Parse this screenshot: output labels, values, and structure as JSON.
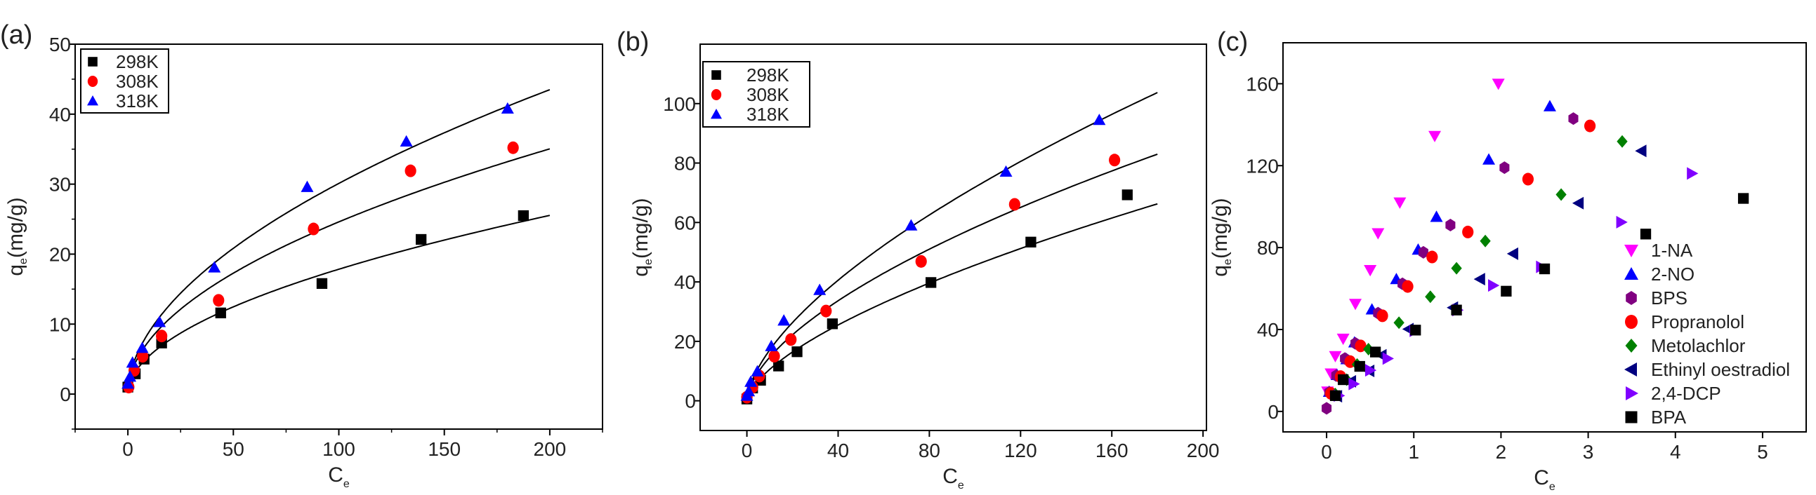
{
  "chart_data": [
    {
      "type": "scatter",
      "panel_label": "(a)",
      "xlabel": "C",
      "xlabel_sub": "e",
      "ylabel": "q",
      "ylabel_sub": "e",
      "ylabel_unit": "(mg/g)",
      "xlim": [
        -25,
        225
      ],
      "ylim": [
        -5,
        50
      ],
      "xticks": [
        0,
        50,
        100,
        150,
        200
      ],
      "yticks": [
        0,
        10,
        20,
        30,
        40,
        50
      ],
      "xminor": 25,
      "yminor": 5,
      "legend_position": "top-left",
      "legend_box": true,
      "series": [
        {
          "name": "298K",
          "marker": "square",
          "color": "#000000",
          "x": [
            0,
            3.5,
            7.7,
            16,
            44,
            92,
            139,
            187.5
          ],
          "y": [
            1.0,
            2.9,
            5.0,
            7.3,
            11.6,
            15.8,
            22.1,
            25.5
          ],
          "fit": {
            "model": "Freundlich",
            "K": 1.65,
            "inv_n": 0.517,
            "x_range": [
              1,
              200
            ]
          }
        },
        {
          "name": "308K",
          "marker": "circle",
          "color": "#ff0000",
          "x": [
            0.4,
            3,
            7,
            16,
            43,
            88,
            134,
            182.6
          ],
          "y": [
            1.0,
            3.4,
            5.4,
            8.3,
            13.4,
            23.6,
            31.9,
            35.2
          ],
          "fit": {
            "model": "Freundlich",
            "K": 2.35,
            "inv_n": 0.51,
            "x_range": [
              1,
              200
            ]
          }
        },
        {
          "name": "318K",
          "marker": "triangle-up",
          "color": "#0000ff",
          "x": [
            0,
            1,
            2.2,
            6.8,
            15,
            41,
            85,
            132,
            180
          ],
          "y": [
            1.5,
            2.5,
            4.5,
            6.6,
            10.3,
            18.1,
            29.6,
            36.1,
            40.8
          ],
          "fit": {
            "model": "Freundlich",
            "K": 2.61,
            "inv_n": 0.531,
            "x_range": [
              1,
              200
            ]
          }
        }
      ]
    },
    {
      "type": "scatter",
      "panel_label": "(b)",
      "xlabel": "C",
      "xlabel_sub": "e",
      "ylabel": "q",
      "ylabel_sub": "e",
      "ylabel_unit": "(mg/g)",
      "xlim": [
        -20.5,
        201.5
      ],
      "ylim": [
        -10,
        120
      ],
      "xticks": [
        0,
        40,
        80,
        120,
        160,
        200
      ],
      "yticks": [
        0,
        20,
        40,
        60,
        80,
        100
      ],
      "xminor": null,
      "yminor": null,
      "legend_position": "top-left",
      "legend_box": true,
      "series": [
        {
          "name": "298K",
          "marker": "square",
          "color": "#000000",
          "x": [
            0,
            2.5,
            6,
            13.9,
            22,
            37.5,
            80.7,
            124.5,
            166.8
          ],
          "y": [
            0.6,
            4.3,
            6.9,
            11.7,
            16.5,
            25.9,
            39.8,
            53.4,
            69.3
          ],
          "fit": {
            "model": "Freundlich",
            "K": 2.45,
            "inv_n": 0.635,
            "x_range": [
              0.5,
              180
            ]
          }
        },
        {
          "name": "308K",
          "marker": "circle",
          "color": "#ff0000",
          "x": [
            0,
            2.5,
            5.5,
            12,
            19.3,
            34.7,
            76.4,
            117.4,
            161.2
          ],
          "y": [
            1.2,
            4.6,
            8.3,
            15.0,
            20.6,
            30.2,
            46.9,
            66.1,
            81.0
          ],
          "fit": {
            "model": "Freundlich",
            "K": 3.68,
            "inv_n": 0.6,
            "x_range": [
              0.5,
              180
            ]
          }
        },
        {
          "name": "318K",
          "marker": "triangle-up",
          "color": "#0000ff",
          "x": [
            0,
            0.8,
            1.7,
            4.6,
            10.7,
            16.2,
            31.9,
            72,
            113.6,
            154.5
          ],
          "y": [
            1.7,
            3.2,
            6.4,
            9.9,
            18.4,
            27.0,
            37.3,
            59.0,
            77.1,
            94.5
          ],
          "fit": {
            "model": "Freundlich",
            "K": 4.06,
            "inv_n": 0.624,
            "x_range": [
              0.5,
              180
            ]
          }
        }
      ]
    },
    {
      "type": "scatter",
      "panel_label": "(c)",
      "xlabel": "C",
      "xlabel_sub": "e",
      "ylabel": "q",
      "ylabel_sub": "e",
      "ylabel_unit": "(mg/g)",
      "xlim": [
        -0.5,
        5.5
      ],
      "ylim": [
        -10,
        180
      ],
      "xticks": [
        0,
        1,
        2,
        3,
        4,
        5
      ],
      "yticks": [
        0,
        40,
        80,
        120,
        160
      ],
      "xminor": null,
      "yminor": null,
      "legend_position": "bottom-right",
      "legend_box": false,
      "series": [
        {
          "name": "1-NA",
          "marker": "triangle-down",
          "color": "#ff00ff",
          "x": [
            0.01,
            0.05,
            0.1,
            0.19,
            0.33,
            0.5,
            0.59,
            0.84,
            1.24,
            1.97
          ],
          "y": [
            9.7,
            18.5,
            27,
            35.5,
            52.5,
            69,
            87,
            102,
            134.5,
            160
          ]
        },
        {
          "name": "2-NO",
          "marker": "triangle-up",
          "color": "#0000ff",
          "x": [
            0.03,
            0.12,
            0.23,
            0.32,
            0.52,
            0.8,
            1.05,
            1.26,
            1.86,
            2.56
          ],
          "y": [
            9.6,
            17.8,
            25.5,
            33.7,
            49.8,
            64.6,
            79,
            95,
            123,
            149
          ]
        },
        {
          "name": "BPS",
          "marker": "hexagon",
          "color": "#800080",
          "x": [
            0.0,
            0.03,
            0.11,
            0.21,
            0.33,
            0.59,
            0.87,
            1.11,
            1.42,
            2.04,
            2.83
          ],
          "y": [
            1.5,
            9.3,
            17.5,
            25.8,
            33.2,
            48,
            62.3,
            77.7,
            91,
            119,
            143
          ]
        },
        {
          "name": "Propranolol",
          "marker": "circle",
          "color": "#ff0000",
          "x": [
            0.05,
            0.16,
            0.27,
            0.39,
            0.64,
            0.93,
            1.21,
            1.62,
            2.31,
            3.02
          ],
          "y": [
            8.8,
            17,
            24.3,
            32,
            46.7,
            61,
            75.4,
            87.6,
            113.4,
            139.4
          ]
        },
        {
          "name": "Metolachlor",
          "marker": "diamond",
          "color": "#008000",
          "x": [
            0.1,
            0.23,
            0.35,
            0.48,
            0.83,
            1.19,
            1.49,
            1.82,
            2.69,
            3.39
          ],
          "y": [
            8.5,
            15.5,
            22.9,
            30.4,
            43.3,
            56,
            69.9,
            83.2,
            105.9,
            131.8
          ]
        },
        {
          "name": "Ethinyl oestradiol",
          "marker": "triangle-left",
          "color": "#000080",
          "x": [
            0.12,
            0.28,
            0.49,
            0.63,
            0.94,
            1.45,
            1.76,
            2.14,
            2.89,
            3.61
          ],
          "y": [
            7.4,
            14.7,
            19.8,
            27.4,
            40.2,
            50.7,
            64.6,
            77,
            101.7,
            127.2
          ]
        },
        {
          "name": "2,4-DCP",
          "marker": "triangle-right",
          "color": "#8000ff",
          "x": [
            0.14,
            0.31,
            0.5,
            0.7,
            1.01,
            1.5,
            1.91,
            2.46,
            3.38,
            4.19
          ],
          "y": [
            7.7,
            13.4,
            20.1,
            25.8,
            39.4,
            49.5,
            61.5,
            70.6,
            92.4,
            116.2
          ]
        },
        {
          "name": "BPA",
          "marker": "square",
          "color": "#000000",
          "x": [
            0.1,
            0.19,
            0.38,
            0.56,
            1.02,
            1.49,
            2.06,
            2.5,
            3.66,
            4.78
          ],
          "y": [
            7.7,
            15.5,
            22,
            29,
            39.7,
            49.5,
            58.7,
            69.6,
            86.6,
            104
          ]
        }
      ]
    }
  ]
}
